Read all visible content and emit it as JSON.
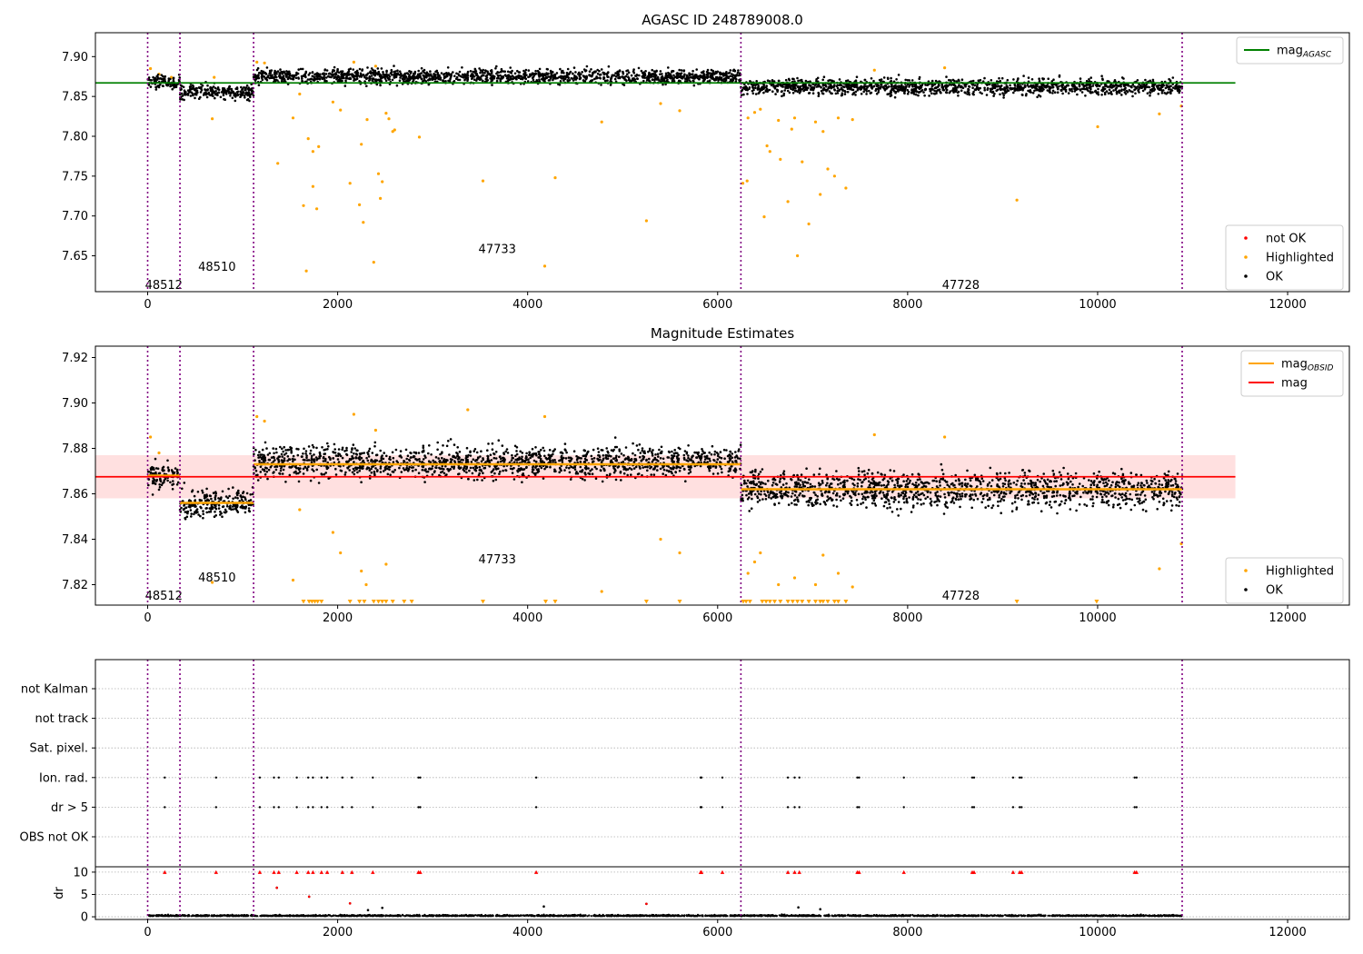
{
  "chart_data": [
    {
      "type": "scatter",
      "title": "AGASC ID 248789008.0",
      "xlabel": "",
      "ylabel": "",
      "xlim": [
        -550,
        12650
      ],
      "ylim": [
        7.605,
        7.93
      ],
      "xticks": [
        0,
        2000,
        4000,
        6000,
        8000,
        10000,
        12000
      ],
      "yticks": [
        7.65,
        7.7,
        7.75,
        7.8,
        7.85,
        7.9
      ],
      "ytick_labels": [
        "7.65",
        "7.70",
        "7.75",
        "7.80",
        "7.85",
        "7.90"
      ],
      "legend_upper": [
        {
          "label": "mag",
          "sub": "AGASC",
          "color": "#008000",
          "kind": "line"
        }
      ],
      "legend_lower": [
        {
          "label": "not OK",
          "color": "#ff0000",
          "kind": "dot"
        },
        {
          "label": "Highlighted",
          "color": "#ffa500",
          "kind": "dot"
        },
        {
          "label": "OK",
          "color": "#000000",
          "kind": "dot"
        }
      ],
      "hline": {
        "name": "mag_AGASC",
        "y": 7.867,
        "x": [
          -550,
          11450
        ],
        "color": "#008000"
      },
      "obsid_boundaries": [
        0,
        340,
        1115,
        6245,
        10890
      ],
      "obsid_labels": [
        {
          "text": "48512",
          "x": 170,
          "y": 7.613
        },
        {
          "text": "48510",
          "x": 730,
          "y": 7.636
        },
        {
          "text": "47733",
          "x": 3680,
          "y": 7.658
        },
        {
          "text": "47728",
          "x": 8560,
          "y": 7.613
        }
      ],
      "ok_bands": [
        {
          "x": [
            0,
            340
          ],
          "center": 7.868,
          "spread": 0.008
        },
        {
          "x": [
            340,
            1115
          ],
          "center": 7.856,
          "spread": 0.009
        },
        {
          "x": [
            1115,
            6245
          ],
          "center": 7.875,
          "spread": 0.009
        },
        {
          "x": [
            6245,
            10890
          ],
          "center": 7.862,
          "spread": 0.01
        }
      ],
      "highlighted_points": [
        [
          30,
          7.885
        ],
        [
          120,
          7.878
        ],
        [
          250,
          7.874
        ],
        [
          680,
          7.822
        ],
        [
          700,
          7.874
        ],
        [
          1150,
          7.893
        ],
        [
          1230,
          7.892
        ],
        [
          1370,
          7.766
        ],
        [
          1530,
          7.823
        ],
        [
          1600,
          7.853
        ],
        [
          1640,
          7.713
        ],
        [
          1670,
          7.631
        ],
        [
          1690,
          7.797
        ],
        [
          1740,
          7.781
        ],
        [
          1740,
          7.737
        ],
        [
          1780,
          7.709
        ],
        [
          1800,
          7.787
        ],
        [
          1950,
          7.843
        ],
        [
          2030,
          7.833
        ],
        [
          2130,
          7.741
        ],
        [
          2170,
          7.893
        ],
        [
          2230,
          7.714
        ],
        [
          2250,
          7.79
        ],
        [
          2270,
          7.692
        ],
        [
          2310,
          7.821
        ],
        [
          2380,
          7.642
        ],
        [
          2400,
          7.888
        ],
        [
          2430,
          7.753
        ],
        [
          2450,
          7.722
        ],
        [
          2470,
          7.743
        ],
        [
          2510,
          7.829
        ],
        [
          2540,
          7.822
        ],
        [
          2580,
          7.806
        ],
        [
          2600,
          7.808
        ],
        [
          2860,
          7.799
        ],
        [
          3530,
          7.744
        ],
        [
          4180,
          7.637
        ],
        [
          4290,
          7.748
        ],
        [
          4780,
          7.818
        ],
        [
          5250,
          7.694
        ],
        [
          5400,
          7.841
        ],
        [
          5600,
          7.832
        ],
        [
          6265,
          7.741
        ],
        [
          6310,
          7.744
        ],
        [
          6320,
          7.823
        ],
        [
          6390,
          7.83
        ],
        [
          6450,
          7.834
        ],
        [
          6490,
          7.699
        ],
        [
          6520,
          7.788
        ],
        [
          6550,
          7.781
        ],
        [
          6640,
          7.82
        ],
        [
          6660,
          7.771
        ],
        [
          6740,
          7.718
        ],
        [
          6780,
          7.809
        ],
        [
          6810,
          7.823
        ],
        [
          6840,
          7.65
        ],
        [
          6890,
          7.768
        ],
        [
          6960,
          7.69
        ],
        [
          7030,
          7.818
        ],
        [
          7080,
          7.727
        ],
        [
          7110,
          7.806
        ],
        [
          7160,
          7.759
        ],
        [
          7230,
          7.75
        ],
        [
          7270,
          7.823
        ],
        [
          7350,
          7.735
        ],
        [
          7420,
          7.821
        ],
        [
          7650,
          7.883
        ],
        [
          8390,
          7.886
        ],
        [
          9150,
          7.72
        ],
        [
          10000,
          7.812
        ],
        [
          10650,
          7.828
        ],
        [
          10880,
          7.838
        ]
      ],
      "not_ok_points": []
    },
    {
      "type": "scatter",
      "title": "Magnitude Estimates",
      "xlabel": "",
      "ylabel": "",
      "xlim": [
        -550,
        12650
      ],
      "ylim": [
        7.811,
        7.925
      ],
      "xticks": [
        0,
        2000,
        4000,
        6000,
        8000,
        10000,
        12000
      ],
      "yticks": [
        7.82,
        7.84,
        7.86,
        7.88,
        7.9,
        7.92
      ],
      "ytick_labels": [
        "7.82",
        "7.84",
        "7.86",
        "7.88",
        "7.90",
        "7.92"
      ],
      "legend_upper": [
        {
          "label": "mag",
          "sub": "OBSID",
          "color": "#ffa500",
          "kind": "line"
        },
        {
          "label": "mag",
          "sub": "",
          "color": "#ff0000",
          "kind": "line"
        }
      ],
      "legend_lower": [
        {
          "label": "Highlighted",
          "color": "#ffa500",
          "kind": "dot"
        },
        {
          "label": "OK",
          "color": "#000000",
          "kind": "dot"
        }
      ],
      "mag_line": {
        "y": 7.8675,
        "x": [
          -550,
          11450
        ],
        "band": [
          7.858,
          7.877
        ],
        "color": "#ff0000"
      },
      "mag_obsid_segments": [
        {
          "x": [
            0,
            340
          ],
          "y": 7.868
        },
        {
          "x": [
            340,
            1115
          ],
          "y": 7.856
        },
        {
          "x": [
            1115,
            6245
          ],
          "y": 7.873
        },
        {
          "x": [
            6245,
            10890
          ],
          "y": 7.862
        }
      ],
      "obsid_boundaries": [
        0,
        340,
        1115,
        6245,
        10890
      ],
      "obsid_labels": [
        {
          "text": "48512",
          "x": 170,
          "y": 7.815
        },
        {
          "text": "48510",
          "x": 730,
          "y": 7.823
        },
        {
          "text": "47733",
          "x": 3680,
          "y": 7.831
        },
        {
          "text": "47728",
          "x": 8560,
          "y": 7.815
        }
      ],
      "ok_bands": [
        {
          "x": [
            0,
            340
          ],
          "center": 7.868,
          "spread": 0.006
        },
        {
          "x": [
            340,
            1115
          ],
          "center": 7.856,
          "spread": 0.006
        },
        {
          "x": [
            1115,
            6245
          ],
          "center": 7.874,
          "spread": 0.007
        },
        {
          "x": [
            6245,
            10890
          ],
          "center": 7.862,
          "spread": 0.008
        }
      ],
      "highlighted_points": [
        [
          30,
          7.885
        ],
        [
          120,
          7.878
        ],
        [
          680,
          7.821
        ],
        [
          1150,
          7.894
        ],
        [
          1230,
          7.892
        ],
        [
          1530,
          7.822
        ],
        [
          1600,
          7.853
        ],
        [
          1950,
          7.843
        ],
        [
          2030,
          7.834
        ],
        [
          2170,
          7.895
        ],
        [
          2250,
          7.826
        ],
        [
          2300,
          7.82
        ],
        [
          2400,
          7.888
        ],
        [
          2510,
          7.829
        ],
        [
          3370,
          7.897
        ],
        [
          4180,
          7.894
        ],
        [
          4780,
          7.817
        ],
        [
          5400,
          7.84
        ],
        [
          5600,
          7.834
        ],
        [
          6320,
          7.825
        ],
        [
          6390,
          7.83
        ],
        [
          6450,
          7.834
        ],
        [
          6640,
          7.82
        ],
        [
          6810,
          7.823
        ],
        [
          7030,
          7.82
        ],
        [
          7110,
          7.833
        ],
        [
          7270,
          7.825
        ],
        [
          7420,
          7.819
        ],
        [
          7650,
          7.886
        ],
        [
          8390,
          7.885
        ],
        [
          10650,
          7.827
        ],
        [
          10880,
          7.838
        ]
      ],
      "clipped_low_points": [
        1640,
        1700,
        1730,
        1760,
        1790,
        1830,
        2130,
        2230,
        2280,
        2380,
        2430,
        2470,
        2510,
        2580,
        2700,
        2780,
        3530,
        4190,
        4290,
        5250,
        5600,
        6270,
        6300,
        6340,
        6470,
        6510,
        6550,
        6600,
        6660,
        6740,
        6790,
        6840,
        6890,
        6960,
        7030,
        7080,
        7110,
        7160,
        7230,
        7270,
        7350,
        9150,
        9990
      ]
    },
    {
      "type": "scatter",
      "title": "",
      "xlabel": "",
      "ylabel": "",
      "xlim": [
        -550,
        12650
      ],
      "xticks": [
        0,
        2000,
        4000,
        6000,
        8000,
        10000,
        12000
      ],
      "obsid_boundaries": [
        0,
        340,
        1115,
        6245,
        10890
      ],
      "flag_categories": [
        "not Kalman",
        "not track",
        "Sat. pixel.",
        "Ion. rad.",
        "dr > 5",
        "OBS not OK"
      ],
      "flag_events": {
        "Ion. rad.": [
          180,
          720,
          1180,
          1330,
          1380,
          1570,
          1690,
          1740,
          1830,
          1890,
          2050,
          2150,
          2370,
          2850,
          2870,
          4090,
          5820,
          5830,
          6050,
          6740,
          6810,
          6860,
          7470,
          7490,
          7960,
          8680,
          8700,
          9110,
          9180,
          9200,
          10390,
          10410
        ],
        "dr > 5": [
          180,
          720,
          1180,
          1330,
          1380,
          1570,
          1690,
          1740,
          1830,
          1890,
          2050,
          2150,
          2370,
          2850,
          2870,
          4090,
          5820,
          5830,
          6050,
          6740,
          6810,
          6860,
          7470,
          7490,
          7960,
          8680,
          8700,
          9110,
          9180,
          9200,
          10390,
          10410
        ]
      },
      "dr_axis": {
        "ylabel": "dr",
        "ylim": [
          -0.6,
          11.2
        ],
        "yticks": [
          0,
          5,
          10
        ],
        "ytick_labels": [
          "0",
          "5",
          "10"
        ],
        "clipped_points": [
          180,
          720,
          1180,
          1330,
          1380,
          1570,
          1690,
          1740,
          1830,
          1890,
          2050,
          2150,
          2370,
          2850,
          2870,
          4090,
          5820,
          5830,
          6050,
          6740,
          6810,
          6860,
          7470,
          7490,
          7960,
          8680,
          8700,
          9110,
          9180,
          9200,
          10390,
          10410
        ],
        "outliers": [
          [
            1360,
            6.5
          ],
          [
            1700,
            4.5
          ],
          [
            2130,
            3.0
          ],
          [
            5250,
            2.9
          ],
          [
            4170,
            2.3
          ],
          [
            2470,
            2.0
          ],
          [
            6850,
            2.1
          ],
          [
            7080,
            1.7
          ],
          [
            2320,
            1.5
          ]
        ]
      }
    }
  ]
}
